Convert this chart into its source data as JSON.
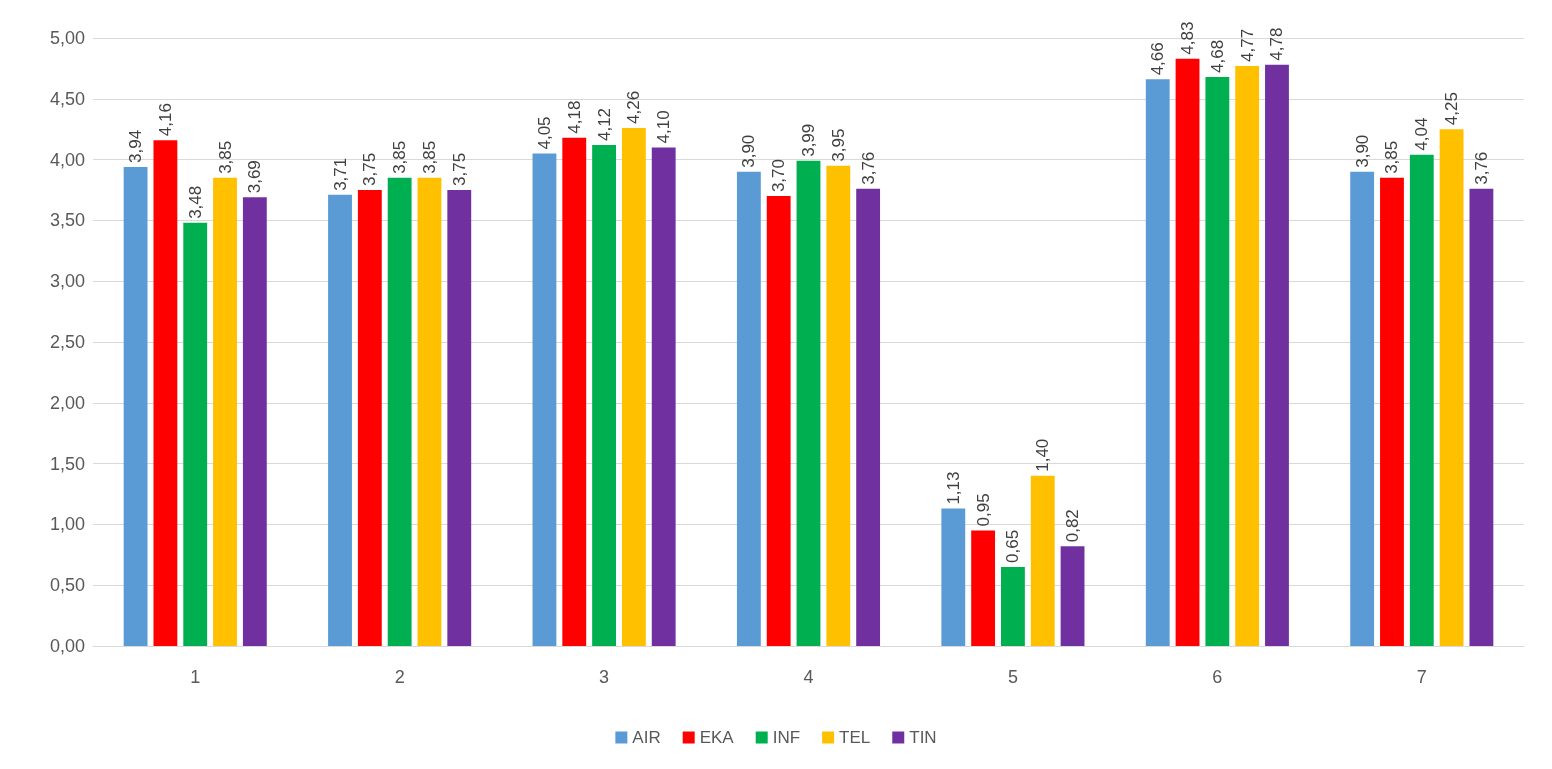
{
  "chart_data": {
    "type": "bar",
    "categories": [
      "1",
      "2",
      "3",
      "4",
      "5",
      "6",
      "7"
    ],
    "series": [
      {
        "name": "AIR",
        "color": "#5b9bd5",
        "values": [
          3.94,
          3.71,
          4.05,
          3.9,
          1.13,
          4.66,
          3.9
        ],
        "value_labels": [
          "3,94",
          "3,71",
          "4,05",
          "3,90",
          "1,13",
          "4,66",
          "3,90"
        ]
      },
      {
        "name": "EKA",
        "color": "#ff0000",
        "values": [
          4.16,
          3.75,
          4.18,
          3.7,
          0.95,
          4.83,
          3.85
        ],
        "value_labels": [
          "4,16",
          "3,75",
          "4,18",
          "3,70",
          "0,95",
          "4,83",
          "3,85"
        ]
      },
      {
        "name": "INF",
        "color": "#00b050",
        "values": [
          3.48,
          3.85,
          4.12,
          3.99,
          0.65,
          4.68,
          4.04
        ],
        "value_labels": [
          "3,48",
          "3,85",
          "4,12",
          "3,99",
          "0,65",
          "4,68",
          "4,04"
        ]
      },
      {
        "name": "TEL",
        "color": "#ffc000",
        "values": [
          3.85,
          3.85,
          4.26,
          3.95,
          1.4,
          4.77,
          4.25
        ],
        "value_labels": [
          "3,85",
          "3,85",
          "4,26",
          "3,95",
          "1,40",
          "4,77",
          "4,25"
        ]
      },
      {
        "name": "TIN",
        "color": "#7030a0",
        "values": [
          3.69,
          3.75,
          4.1,
          3.76,
          0.82,
          4.78,
          3.76
        ],
        "value_labels": [
          "3,69",
          "3,75",
          "4,10",
          "3,76",
          "0,82",
          "4,78",
          "3,76"
        ]
      }
    ],
    "ylim": [
      0,
      5
    ],
    "yticks": [
      {
        "value": 0,
        "label": "0,00"
      },
      {
        "value": 0.5,
        "label": "0,50"
      },
      {
        "value": 1,
        "label": "1,00"
      },
      {
        "value": 1.5,
        "label": "1,50"
      },
      {
        "value": 2,
        "label": "2,00"
      },
      {
        "value": 2.5,
        "label": "2,50"
      },
      {
        "value": 3,
        "label": "3,00"
      },
      {
        "value": 3.5,
        "label": "3,50"
      },
      {
        "value": 4,
        "label": "4,00"
      },
      {
        "value": 4.5,
        "label": "4,50"
      },
      {
        "value": 5,
        "label": "5,00"
      }
    ],
    "grid": "y",
    "legend": "bottom"
  }
}
